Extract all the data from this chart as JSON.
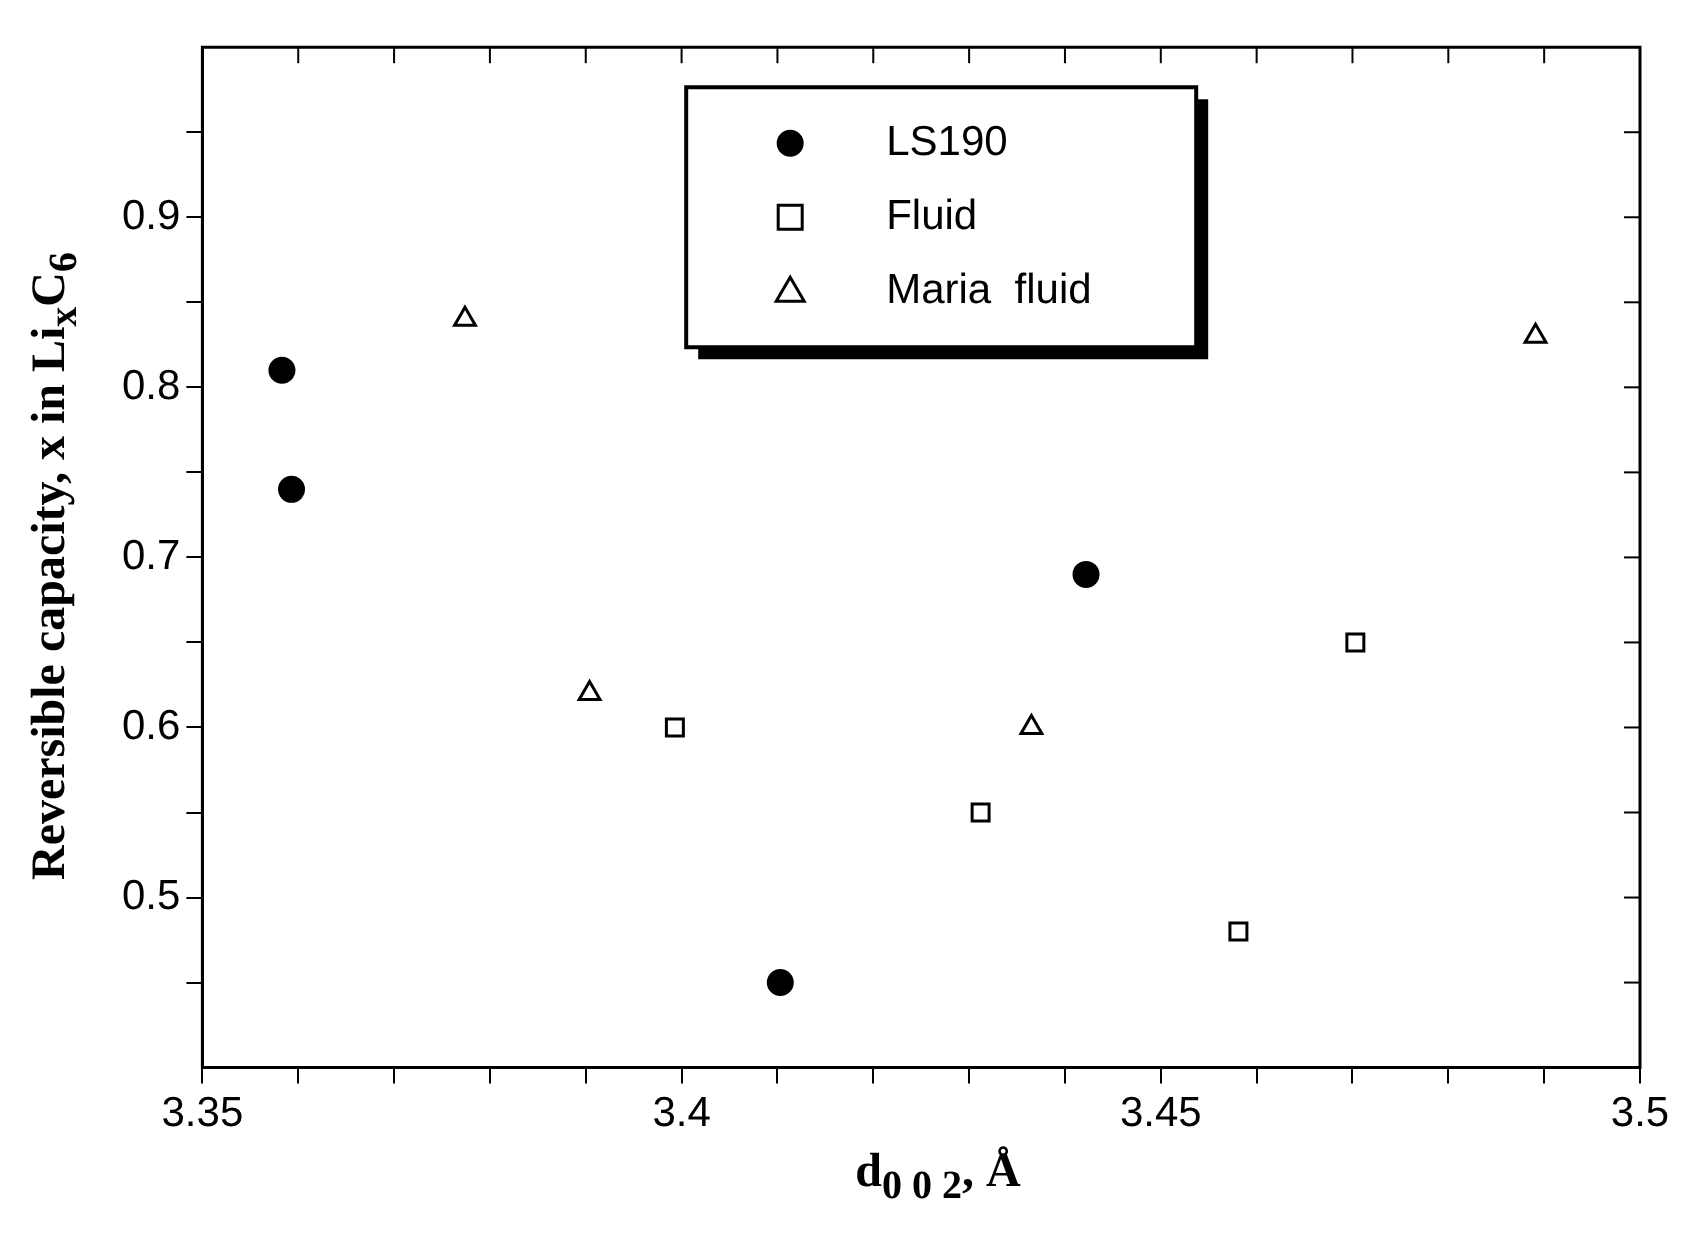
{
  "chart_data": {
    "type": "scatter",
    "xlabel": "d$_{0 0 2}$, Å",
    "ylabel": "Reversible capacity, x in Li$_{x}$C$_{6}$",
    "xlim": [
      3.35,
      3.5
    ],
    "xticks": [
      3.35,
      {
        "value": 3.36,
        "label": null
      },
      {
        "value": 3.37,
        "label": null
      },
      {
        "value": 3.38,
        "label": null
      },
      {
        "value": 3.39,
        "label": null
      },
      3.4,
      {
        "value": 3.41,
        "label": null
      },
      {
        "value": 3.42,
        "label": null
      },
      {
        "value": 3.43,
        "label": null
      },
      {
        "value": 3.44,
        "label": null
      },
      3.45,
      {
        "value": 3.46,
        "label": null
      },
      {
        "value": 3.47,
        "label": null
      },
      {
        "value": 3.48,
        "label": null
      },
      {
        "value": 3.49,
        "label": null
      },
      3.5
    ],
    "ylim": [
      0.4,
      1.0
    ],
    "yticks": [
      {
        "value": 0.45,
        "label": null
      },
      0.5,
      {
        "value": 0.55,
        "label": null
      },
      0.6,
      {
        "value": 0.65,
        "label": null
      },
      0.7,
      {
        "value": 0.75,
        "label": null
      },
      0.8,
      {
        "value": 0.85,
        "label": null
      },
      0.9,
      {
        "value": 0.95,
        "label": null
      }
    ],
    "grid": false,
    "legend": "top",
    "series": [
      {
        "name": "LS190",
        "color": "#000000",
        "marker": "circle",
        "x": [
          3.3583,
          3.3593,
          3.4103,
          3.4422
        ],
        "values": [
          0.81,
          0.74,
          0.45,
          0.69
        ]
      },
      {
        "name": "Fluid",
        "color": "#000000",
        "marker": "square",
        "x": [
          3.3993,
          3.4312,
          3.4581,
          3.4703
        ],
        "values": [
          0.6,
          0.55,
          0.48,
          0.65
        ]
      },
      {
        "name": "Maria  fluid",
        "color": "#000000",
        "marker": "triangle",
        "x": [
          3.3774,
          3.3904,
          3.4365,
          3.4891
        ],
        "values": [
          0.84,
          0.62,
          0.6,
          0.83
        ]
      }
    ]
  }
}
